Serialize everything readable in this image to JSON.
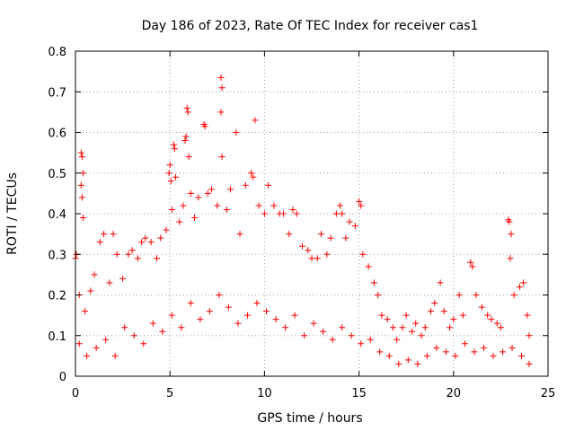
{
  "chart_data": {
    "type": "scatter",
    "title": "Day 186 of 2023, Rate Of TEC Index for receiver cas1",
    "xlabel": "GPS time / hours",
    "ylabel": "ROTI / TECUs",
    "xlim": [
      0,
      25
    ],
    "ylim": [
      0,
      0.8
    ],
    "xticks": [
      "0",
      "5",
      "10",
      "15",
      "20",
      "25"
    ],
    "yticks": [
      "0",
      "0.1",
      "0.2",
      "0.3",
      "0.4",
      "0.5",
      "0.6",
      "0.7",
      "0.8"
    ],
    "grid": true,
    "marker": "+",
    "color": "#ff0000",
    "series": [
      {
        "name": "ROTI",
        "points": [
          [
            0.0,
            0.29
          ],
          [
            0.05,
            0.3
          ],
          [
            0.3,
            0.55
          ],
          [
            0.35,
            0.54
          ],
          [
            0.4,
            0.5
          ],
          [
            0.3,
            0.47
          ],
          [
            0.35,
            0.44
          ],
          [
            0.4,
            0.39
          ],
          [
            0.2,
            0.2
          ],
          [
            0.5,
            0.16
          ],
          [
            0.8,
            0.21
          ],
          [
            1.0,
            0.25
          ],
          [
            1.3,
            0.33
          ],
          [
            1.5,
            0.35
          ],
          [
            1.8,
            0.23
          ],
          [
            2.0,
            0.35
          ],
          [
            2.2,
            0.3
          ],
          [
            2.5,
            0.24
          ],
          [
            2.8,
            0.3
          ],
          [
            3.0,
            0.31
          ],
          [
            3.3,
            0.29
          ],
          [
            3.5,
            0.33
          ],
          [
            3.7,
            0.34
          ],
          [
            4.0,
            0.33
          ],
          [
            4.3,
            0.29
          ],
          [
            4.5,
            0.34
          ],
          [
            4.8,
            0.36
          ],
          [
            4.95,
            0.5
          ],
          [
            5.0,
            0.52
          ],
          [
            5.05,
            0.48
          ],
          [
            5.1,
            0.41
          ],
          [
            5.2,
            0.57
          ],
          [
            5.25,
            0.56
          ],
          [
            5.3,
            0.49
          ],
          [
            5.5,
            0.38
          ],
          [
            5.7,
            0.42
          ],
          [
            5.8,
            0.58
          ],
          [
            5.85,
            0.59
          ],
          [
            5.9,
            0.66
          ],
          [
            5.95,
            0.65
          ],
          [
            6.0,
            0.54
          ],
          [
            6.1,
            0.45
          ],
          [
            6.3,
            0.39
          ],
          [
            6.5,
            0.44
          ],
          [
            6.8,
            0.62
          ],
          [
            6.85,
            0.615
          ],
          [
            7.0,
            0.45
          ],
          [
            7.2,
            0.46
          ],
          [
            7.5,
            0.42
          ],
          [
            7.7,
            0.735
          ],
          [
            7.75,
            0.71
          ],
          [
            7.7,
            0.65
          ],
          [
            7.75,
            0.54
          ],
          [
            8.0,
            0.41
          ],
          [
            8.2,
            0.46
          ],
          [
            8.5,
            0.6
          ],
          [
            8.7,
            0.35
          ],
          [
            9.0,
            0.47
          ],
          [
            9.3,
            0.5
          ],
          [
            9.4,
            0.49
          ],
          [
            9.5,
            0.63
          ],
          [
            9.7,
            0.42
          ],
          [
            10.0,
            0.4
          ],
          [
            10.2,
            0.47
          ],
          [
            10.5,
            0.42
          ],
          [
            10.8,
            0.4
          ],
          [
            11.0,
            0.4
          ],
          [
            11.3,
            0.35
          ],
          [
            11.5,
            0.41
          ],
          [
            11.7,
            0.4
          ],
          [
            12.0,
            0.32
          ],
          [
            12.3,
            0.31
          ],
          [
            12.5,
            0.29
          ],
          [
            12.8,
            0.29
          ],
          [
            13.0,
            0.35
          ],
          [
            13.3,
            0.3
          ],
          [
            13.5,
            0.34
          ],
          [
            13.8,
            0.4
          ],
          [
            14.0,
            0.42
          ],
          [
            14.1,
            0.4
          ],
          [
            14.3,
            0.34
          ],
          [
            14.5,
            0.38
          ],
          [
            14.8,
            0.37
          ],
          [
            15.0,
            0.43
          ],
          [
            15.1,
            0.42
          ],
          [
            15.2,
            0.3
          ],
          [
            15.5,
            0.27
          ],
          [
            15.8,
            0.23
          ],
          [
            16.0,
            0.2
          ],
          [
            16.2,
            0.15
          ],
          [
            16.5,
            0.14
          ],
          [
            16.8,
            0.12
          ],
          [
            17.0,
            0.09
          ],
          [
            17.3,
            0.12
          ],
          [
            17.5,
            0.15
          ],
          [
            17.8,
            0.11
          ],
          [
            18.0,
            0.13
          ],
          [
            18.3,
            0.1
          ],
          [
            18.5,
            0.12
          ],
          [
            18.8,
            0.16
          ],
          [
            19.0,
            0.18
          ],
          [
            19.3,
            0.23
          ],
          [
            19.5,
            0.16
          ],
          [
            19.8,
            0.12
          ],
          [
            20.0,
            0.14
          ],
          [
            20.3,
            0.2
          ],
          [
            20.5,
            0.15
          ],
          [
            20.9,
            0.28
          ],
          [
            21.0,
            0.27
          ],
          [
            21.2,
            0.2
          ],
          [
            21.5,
            0.17
          ],
          [
            21.8,
            0.15
          ],
          [
            22.0,
            0.14
          ],
          [
            22.3,
            0.13
          ],
          [
            22.5,
            0.12
          ],
          [
            22.9,
            0.385
          ],
          [
            22.95,
            0.38
          ],
          [
            23.0,
            0.29
          ],
          [
            23.05,
            0.35
          ],
          [
            23.2,
            0.2
          ],
          [
            23.5,
            0.22
          ],
          [
            23.7,
            0.23
          ],
          [
            23.9,
            0.15
          ],
          [
            24.0,
            0.1
          ],
          [
            0.2,
            0.08
          ],
          [
            0.6,
            0.05
          ],
          [
            1.1,
            0.07
          ],
          [
            1.6,
            0.09
          ],
          [
            2.1,
            0.05
          ],
          [
            2.6,
            0.12
          ],
          [
            3.1,
            0.1
          ],
          [
            3.6,
            0.08
          ],
          [
            4.1,
            0.13
          ],
          [
            4.6,
            0.11
          ],
          [
            5.1,
            0.15
          ],
          [
            5.6,
            0.12
          ],
          [
            6.1,
            0.18
          ],
          [
            6.6,
            0.14
          ],
          [
            7.1,
            0.16
          ],
          [
            7.6,
            0.2
          ],
          [
            8.1,
            0.17
          ],
          [
            8.6,
            0.13
          ],
          [
            9.1,
            0.15
          ],
          [
            9.6,
            0.18
          ],
          [
            10.1,
            0.16
          ],
          [
            10.6,
            0.14
          ],
          [
            11.1,
            0.12
          ],
          [
            11.6,
            0.15
          ],
          [
            12.1,
            0.1
          ],
          [
            12.6,
            0.13
          ],
          [
            13.1,
            0.11
          ],
          [
            13.6,
            0.09
          ],
          [
            14.1,
            0.12
          ],
          [
            14.6,
            0.1
          ],
          [
            15.1,
            0.08
          ],
          [
            15.6,
            0.09
          ],
          [
            16.1,
            0.06
          ],
          [
            16.6,
            0.05
          ],
          [
            17.1,
            0.03
          ],
          [
            17.6,
            0.04
          ],
          [
            18.1,
            0.03
          ],
          [
            18.6,
            0.05
          ],
          [
            19.1,
            0.07
          ],
          [
            19.6,
            0.06
          ],
          [
            20.1,
            0.05
          ],
          [
            20.6,
            0.08
          ],
          [
            21.1,
            0.06
          ],
          [
            21.6,
            0.07
          ],
          [
            22.1,
            0.05
          ],
          [
            22.6,
            0.06
          ],
          [
            23.1,
            0.07
          ],
          [
            23.6,
            0.05
          ],
          [
            24.0,
            0.03
          ]
        ]
      }
    ]
  }
}
